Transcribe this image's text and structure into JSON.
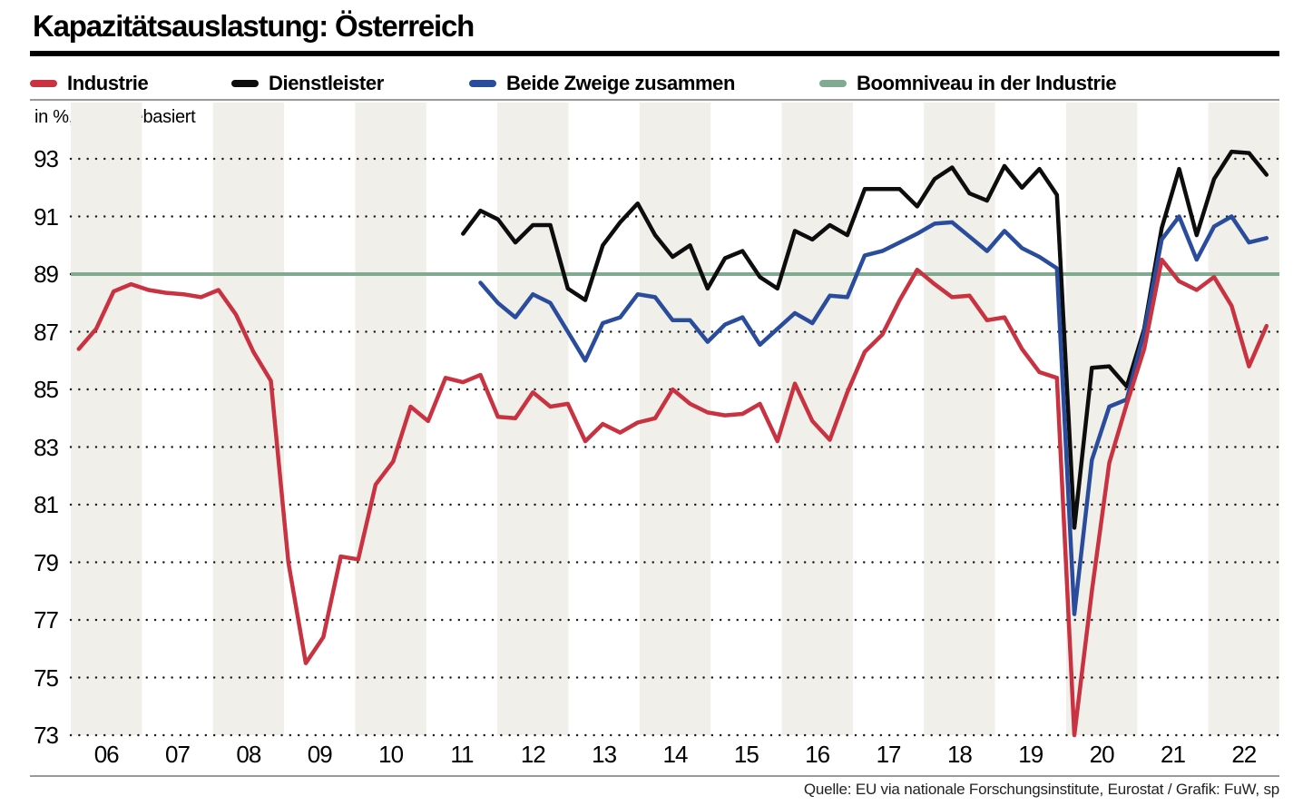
{
  "title": "Kapazitätsauslastung: Österreich",
  "unit_label": "in %, umfragebasiert",
  "source": "Quelle: EU via nationale Forschungsinstitute, Eurostat / Grafik: FuW, sp",
  "colors": {
    "industrie": "#c93240",
    "dienstleister": "#0d0d0d",
    "beide_zweige": "#2a4c9c",
    "boomniveau": "#80ab91",
    "band": "#f1efe9",
    "grid_dot": "#1a1a1a",
    "rule": "#999999",
    "title_rule": "#000000"
  },
  "legend": {
    "items": [
      {
        "label": "Industrie",
        "color_key": "industrie"
      },
      {
        "label": "Dienstleister",
        "color_key": "dienstleister"
      },
      {
        "label": "Beide Zweige zusammen",
        "color_key": "beide_zweige"
      },
      {
        "label": "Boomniveau in der Industrie",
        "color_key": "boomniveau"
      }
    ]
  },
  "chart_data": {
    "type": "line",
    "title": "Kapazitätsauslastung: Österreich",
    "ylabel": "in %, umfragebasiert",
    "quarters_per_year": 4,
    "x_axis": {
      "years": [
        "06",
        "07",
        "08",
        "09",
        "10",
        "11",
        "12",
        "13",
        "14",
        "15",
        "16",
        "17",
        "18",
        "19",
        "20",
        "21",
        "22"
      ],
      "shaded_years": [
        "06",
        "08",
        "10",
        "12",
        "14",
        "16",
        "18",
        "20",
        "22"
      ]
    },
    "y_axis": {
      "min": 73,
      "max": 93,
      "ticks": [
        93,
        91,
        89,
        87,
        85,
        83,
        81,
        79,
        77,
        75,
        73
      ],
      "gridlines": "dotted"
    },
    "boom_level": {
      "label": "Boomniveau in der Industrie",
      "value": 89
    },
    "series": [
      {
        "name": "Industrie",
        "color_key": "industrie",
        "start": "2005-Q4",
        "start_offset_quarters": -1,
        "values": [
          86.4,
          87.1,
          88.4,
          88.65,
          88.45,
          88.35,
          88.3,
          88.2,
          88.45,
          87.6,
          86.3,
          85.3,
          79.0,
          75.5,
          76.4,
          79.2,
          79.1,
          81.7,
          82.5,
          84.4,
          83.9,
          85.4,
          85.25,
          85.5,
          84.05,
          84.0,
          84.9,
          84.4,
          84.5,
          83.2,
          83.8,
          83.5,
          83.85,
          84.0,
          85.0,
          84.5,
          84.2,
          84.1,
          84.15,
          84.5,
          83.2,
          85.2,
          83.9,
          83.25,
          84.9,
          86.3,
          86.9,
          88.1,
          89.15,
          88.65,
          88.2,
          88.25,
          87.4,
          87.5,
          86.4,
          85.6,
          85.4,
          73.0,
          78.0,
          82.45,
          84.5,
          86.4,
          89.5,
          88.75,
          88.45,
          88.9,
          87.9,
          85.8,
          87.2
        ]
      },
      {
        "name": "Dienstleister",
        "color_key": "dienstleister",
        "start": "2011-Q2",
        "start_offset_quarters": 21,
        "values": [
          90.4,
          91.2,
          90.9,
          90.1,
          90.7,
          90.7,
          88.5,
          88.1,
          90.0,
          90.8,
          91.45,
          90.35,
          89.6,
          90.0,
          88.5,
          89.55,
          89.8,
          88.9,
          88.5,
          90.5,
          90.2,
          90.7,
          90.35,
          91.95,
          91.95,
          91.95,
          91.35,
          92.3,
          92.7,
          91.8,
          91.55,
          92.75,
          92.0,
          92.65,
          91.75,
          80.2,
          85.75,
          85.8,
          85.1,
          87.1,
          90.6,
          92.65,
          90.35,
          92.3,
          93.25,
          93.2,
          92.45
        ]
      },
      {
        "name": "Beide Zweige zusammen",
        "color_key": "beide_zweige",
        "start": "2011-Q3",
        "start_offset_quarters": 22,
        "values": [
          88.7,
          88.0,
          87.5,
          88.3,
          88.0,
          87.0,
          86.0,
          87.3,
          87.5,
          88.3,
          88.2,
          87.4,
          87.4,
          86.65,
          87.25,
          87.5,
          86.55,
          87.1,
          87.65,
          87.3,
          88.25,
          88.2,
          89.65,
          89.8,
          90.1,
          90.4,
          90.75,
          90.8,
          90.3,
          89.8,
          90.5,
          89.9,
          89.6,
          89.2,
          77.2,
          82.55,
          84.4,
          84.65,
          87.0,
          90.2,
          91.0,
          89.5,
          90.65,
          91.0,
          90.1,
          90.25
        ]
      }
    ]
  }
}
